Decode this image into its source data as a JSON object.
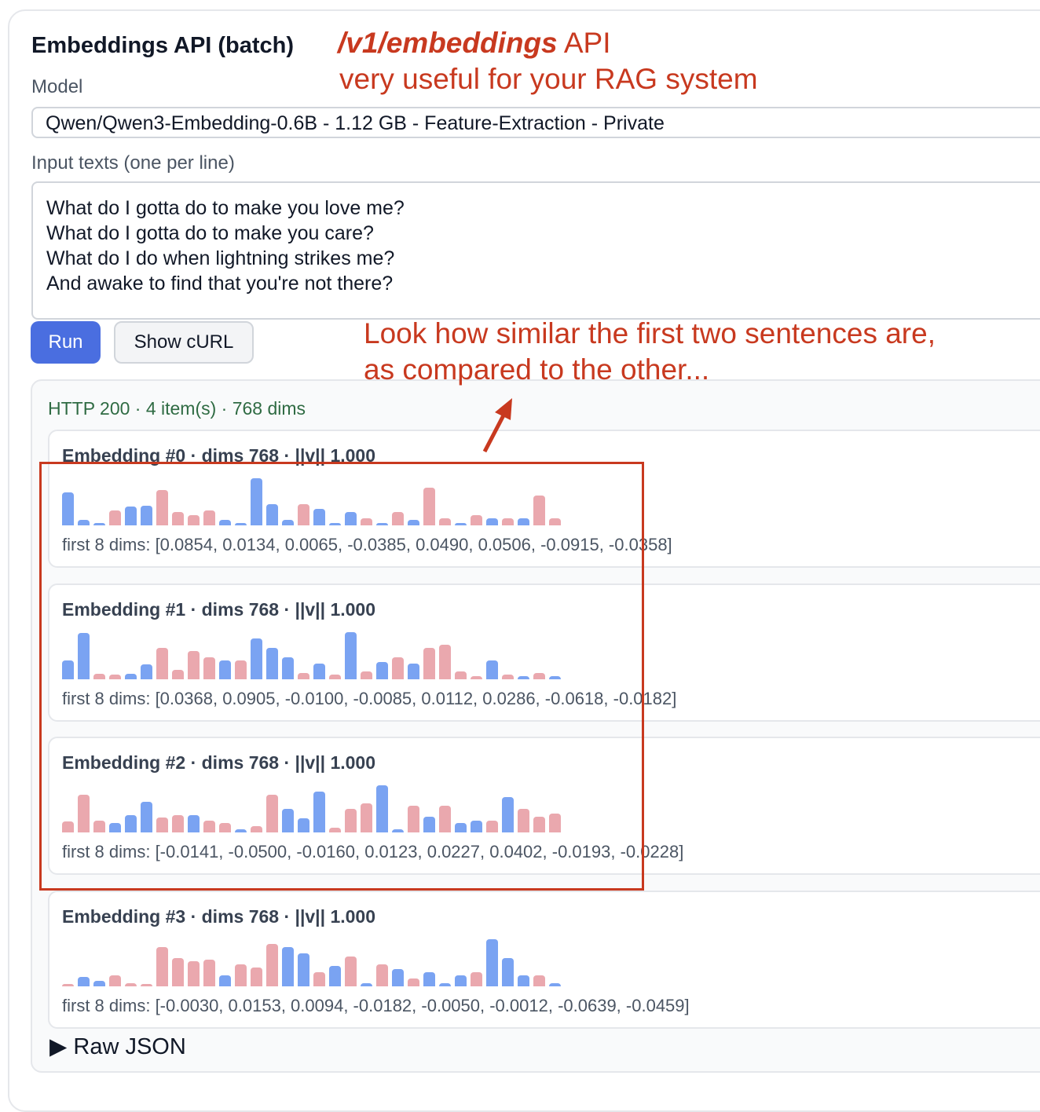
{
  "title": "Embeddings API (batch)",
  "model": {
    "label": "Model",
    "value": "Qwen/Qwen3-Embedding-0.6B - 1.12 GB - Feature-Extraction - Private"
  },
  "input": {
    "label": "Input texts (one per line)",
    "value": "What do I gotta do to make you love me?\nWhat do I gotta do to make you care?\nWhat do I do when lightning strikes me?\nAnd awake to find that you're not there?"
  },
  "buttons": {
    "run": "Run",
    "curl": "Show cURL"
  },
  "results": {
    "status": "HTTP 200 · 4 item(s) · 768 dims",
    "raw_json": "Raw JSON",
    "raw_icon": "triangle-right-icon",
    "colors": {
      "positive": "#7aa3f2",
      "negative": "#eaa8ae"
    },
    "embeddings": [
      {
        "title": "Embedding #0 · dims 768 · ||v|| 1.000",
        "first": "first 8 dims: [0.0854, 0.0134, 0.0065, -0.0385, 0.0490, 0.0506, -0.0915, -0.0358]",
        "values": [
          0.0854,
          0.0134,
          0.0065,
          -0.0385,
          0.049,
          0.0506,
          -0.0915,
          -0.0358,
          -0.027,
          -0.04,
          0.015,
          0.006,
          0.123,
          0.056,
          0.015,
          -0.056,
          0.044,
          0.006,
          0.035,
          -0.019,
          0.006,
          -0.035,
          0.015,
          -0.098,
          -0.019,
          0.006,
          -0.027,
          0.019,
          -0.019,
          0.019,
          -0.077,
          -0.019
        ]
      },
      {
        "title": "Embedding #1 · dims 768 · ||v|| 1.000",
        "first": "first 8 dims: [0.0368, 0.0905, -0.0100, -0.0085, 0.0112, 0.0286, -0.0618, -0.0182]",
        "values": [
          0.0368,
          0.0905,
          -0.01,
          -0.0085,
          0.0112,
          0.0286,
          -0.0618,
          -0.0182,
          -0.055,
          -0.043,
          0.037,
          -0.037,
          0.08,
          0.062,
          0.043,
          -0.012,
          0.031,
          -0.009,
          0.092,
          -0.015,
          0.034,
          -0.043,
          0.031,
          -0.062,
          -0.068,
          -0.015,
          -0.006,
          0.037,
          -0.009,
          0.006,
          -0.012,
          0.006
        ]
      },
      {
        "title": "Embedding #2 · dims 768 · ||v|| 1.000",
        "first": "first 8 dims: [-0.0141, -0.0500, -0.0160, 0.0123, 0.0227, 0.0402, -0.0193, -0.0228]",
        "values": [
          -0.0141,
          -0.05,
          -0.016,
          0.0123,
          0.0227,
          0.0402,
          -0.0193,
          -0.0228,
          0.023,
          -0.015,
          -0.012,
          0.004,
          -0.008,
          -0.05,
          0.031,
          0.019,
          0.054,
          -0.006,
          -0.031,
          -0.038,
          0.062,
          0.004,
          -0.035,
          0.021,
          -0.035,
          0.012,
          0.015,
          -0.015,
          0.046,
          -0.031,
          -0.021,
          -0.025
        ]
      },
      {
        "title": "Embedding #3 · dims 768 · ||v|| 1.000",
        "first": "first 8 dims: [-0.0030, 0.0153, 0.0094, -0.0182, -0.0050, -0.0012, -0.0639, -0.0459]",
        "values": [
          -0.003,
          0.0153,
          0.0094,
          -0.0182,
          -0.005,
          -0.0012,
          -0.0639,
          -0.0459,
          -0.041,
          -0.044,
          0.018,
          -0.036,
          -0.031,
          -0.069,
          0.064,
          0.054,
          -0.023,
          0.033,
          -0.049,
          0.005,
          -0.036,
          0.028,
          -0.013,
          0.023,
          0.005,
          0.018,
          -0.023,
          0.077,
          0.046,
          0.018,
          -0.018,
          0.005
        ]
      }
    ]
  },
  "annotations": {
    "api_bold": "/v1/embeddings",
    "api_rest": " API",
    "rag": "very useful for your RAG system",
    "similar_1": "Look how similar the first two sentences are,",
    "similar_2": "as compared to the other...",
    "color": "#c8391f"
  }
}
